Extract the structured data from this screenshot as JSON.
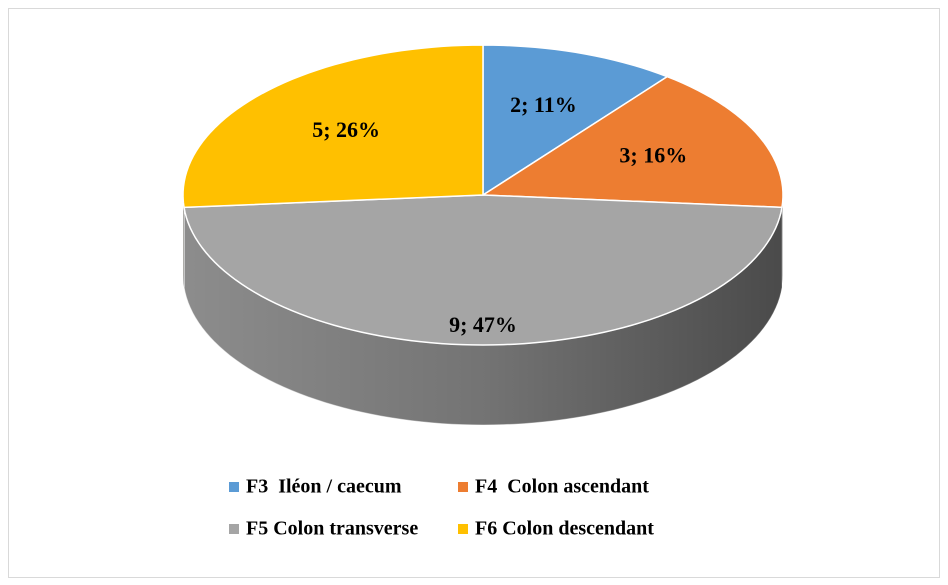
{
  "chart_data": {
    "type": "pie",
    "categories": [
      "F3  Iléon / caecum",
      "F4  Colon ascendant",
      "F5 Colon transverse",
      "F6 Colon descendant"
    ],
    "values": [
      2,
      3,
      9,
      5
    ],
    "value_labels": [
      "2; 11%",
      "3; 16%",
      "9; 47%",
      "5; 26%"
    ],
    "colors": [
      "#5b9bd5",
      "#ed7d31",
      "#a5a5a5",
      "#ffc000"
    ],
    "legend": "bottom"
  }
}
